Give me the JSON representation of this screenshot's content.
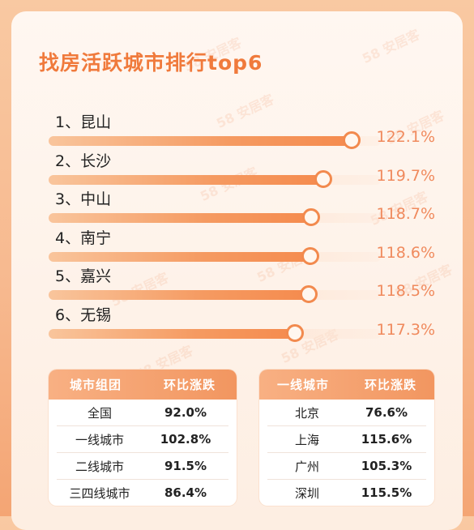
{
  "title": "找房活跃城市排行top6",
  "watermark": "58 安居客",
  "chart_data": {
    "type": "bar",
    "title": "找房活跃城市排行top6",
    "unit": "%",
    "items": [
      {
        "rank_label": "1、昆山",
        "value": 122.1,
        "value_label": "122.1%"
      },
      {
        "rank_label": "2、长沙",
        "value": 119.7,
        "value_label": "119.7%"
      },
      {
        "rank_label": "3、中山",
        "value": 118.7,
        "value_label": "118.7%"
      },
      {
        "rank_label": "4、南宁",
        "value": 118.6,
        "value_label": "118.6%"
      },
      {
        "rank_label": "5、嘉兴",
        "value": 118.5,
        "value_label": "118.5%"
      },
      {
        "rank_label": "6、无锡",
        "value": 117.3,
        "value_label": "117.3%"
      }
    ]
  },
  "table_groups": {
    "headers": [
      "城市组团",
      "环比涨跌"
    ],
    "rows": [
      {
        "name": "全国",
        "value": "92.0%"
      },
      {
        "name": "一线城市",
        "value": "102.8%"
      },
      {
        "name": "二线城市",
        "value": "91.5%"
      },
      {
        "name": "三四线城市",
        "value": "86.4%"
      }
    ]
  },
  "table_tier1": {
    "headers": [
      "一线城市",
      "环比涨跌"
    ],
    "rows": [
      {
        "name": "北京",
        "value": "76.6%"
      },
      {
        "name": "上海",
        "value": "115.6%"
      },
      {
        "name": "广州",
        "value": "105.3%"
      },
      {
        "name": "深圳",
        "value": "115.5%"
      }
    ]
  },
  "colors": {
    "accent": "#f07a3c",
    "bar": "#f59a61",
    "value_text": "#f08a5d"
  }
}
